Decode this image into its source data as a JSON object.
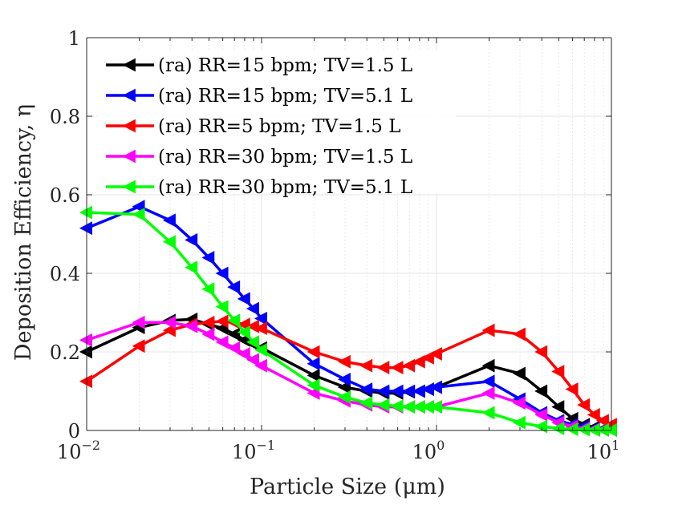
{
  "chart_data": {
    "type": "line",
    "xlabel": "Particle Size (μm)",
    "ylabel": "Deposition Efficiency, η",
    "xscale": "log",
    "xlim": [
      0.01,
      10
    ],
    "ylim": [
      0,
      1
    ],
    "xticks": [
      {
        "value": 0.01,
        "base": "10",
        "exp": "−2"
      },
      {
        "value": 0.1,
        "base": "10",
        "exp": "−1"
      },
      {
        "value": 1,
        "base": "10",
        "exp": "0"
      },
      {
        "value": 10,
        "base": "10",
        "exp": "1"
      }
    ],
    "yticks": [
      {
        "value": 0,
        "label": "0"
      },
      {
        "value": 0.2,
        "label": "0.2"
      },
      {
        "value": 0.4,
        "label": "0.4"
      },
      {
        "value": 0.6,
        "label": "0.6"
      },
      {
        "value": 0.8,
        "label": "0.8"
      },
      {
        "value": 1,
        "label": "1"
      }
    ],
    "grid": true,
    "minor_grid": true,
    "marker": "left-triangle",
    "legend_position": "top-left",
    "series": [
      {
        "name": "(ra) RR=15 bpm; TV=1.5 L",
        "color": "#000000",
        "x": [
          0.01,
          0.02,
          0.03,
          0.04,
          0.05,
          0.06,
          0.07,
          0.08,
          0.09,
          0.1,
          0.2,
          0.3,
          0.4,
          0.5,
          0.6,
          0.7,
          0.8,
          0.9,
          1,
          2,
          3,
          4,
          5,
          6,
          7,
          8,
          9,
          10
        ],
        "y": [
          0.2,
          0.262,
          0.28,
          0.283,
          0.27,
          0.26,
          0.245,
          0.23,
          0.22,
          0.21,
          0.14,
          0.11,
          0.1,
          0.095,
          0.095,
          0.098,
          0.1,
          0.105,
          0.11,
          0.165,
          0.145,
          0.1,
          0.06,
          0.03,
          0.015,
          0.008,
          0.004,
          0.002
        ]
      },
      {
        "name": "(ra) RR=15 bpm; TV=5.1 L",
        "color": "#0000FF",
        "x": [
          0.01,
          0.02,
          0.03,
          0.04,
          0.05,
          0.06,
          0.07,
          0.08,
          0.09,
          0.1,
          0.2,
          0.3,
          0.4,
          0.5,
          0.6,
          0.7,
          0.8,
          0.9,
          1,
          2,
          3,
          4,
          5,
          6,
          7,
          8,
          9,
          10
        ],
        "y": [
          0.515,
          0.57,
          0.535,
          0.485,
          0.44,
          0.4,
          0.365,
          0.335,
          0.31,
          0.285,
          0.17,
          0.13,
          0.105,
          0.1,
          0.1,
          0.1,
          0.1,
          0.105,
          0.11,
          0.125,
          0.08,
          0.045,
          0.025,
          0.015,
          0.01,
          0.005,
          0.003,
          0.001
        ]
      },
      {
        "name": "(ra) RR=5 bpm; TV=1.5 L",
        "color": "#FF0000",
        "x": [
          0.01,
          0.02,
          0.03,
          0.04,
          0.05,
          0.06,
          0.07,
          0.08,
          0.09,
          0.1,
          0.2,
          0.3,
          0.4,
          0.5,
          0.6,
          0.7,
          0.8,
          0.9,
          1,
          2,
          3,
          4,
          5,
          6,
          7,
          8,
          9,
          10
        ],
        "y": [
          0.125,
          0.215,
          0.255,
          0.27,
          0.275,
          0.278,
          0.275,
          0.27,
          0.265,
          0.26,
          0.2,
          0.175,
          0.165,
          0.16,
          0.16,
          0.165,
          0.175,
          0.185,
          0.195,
          0.255,
          0.245,
          0.2,
          0.15,
          0.105,
          0.065,
          0.04,
          0.025,
          0.015
        ]
      },
      {
        "name": "(ra) RR=30 bpm; TV=1.5 L",
        "color": "#FF00FF",
        "x": [
          0.01,
          0.02,
          0.03,
          0.04,
          0.05,
          0.06,
          0.07,
          0.08,
          0.09,
          0.1,
          0.2,
          0.3,
          0.4,
          0.5,
          0.6,
          0.7,
          0.8,
          0.9,
          1,
          2,
          3,
          4,
          5,
          6,
          7,
          8,
          9,
          10
        ],
        "y": [
          0.23,
          0.275,
          0.275,
          0.265,
          0.245,
          0.225,
          0.21,
          0.195,
          0.18,
          0.165,
          0.095,
          0.075,
          0.065,
          0.06,
          0.06,
          0.06,
          0.06,
          0.06,
          0.06,
          0.095,
          0.07,
          0.04,
          0.02,
          0.01,
          0.005,
          0.003,
          0.002,
          0.001
        ]
      },
      {
        "name": "(ra) RR=30 bpm; TV=5.1 L",
        "color": "#00FF00",
        "x": [
          0.01,
          0.02,
          0.03,
          0.04,
          0.05,
          0.06,
          0.07,
          0.08,
          0.09,
          0.1,
          0.2,
          0.3,
          0.4,
          0.5,
          0.6,
          0.7,
          0.8,
          0.9,
          1,
          2,
          3,
          4,
          5,
          6,
          7,
          8,
          9,
          10
        ],
        "y": [
          0.555,
          0.55,
          0.48,
          0.415,
          0.36,
          0.315,
          0.28,
          0.25,
          0.225,
          0.205,
          0.115,
          0.085,
          0.07,
          0.065,
          0.062,
          0.06,
          0.06,
          0.06,
          0.06,
          0.045,
          0.02,
          0.01,
          0.005,
          0.003,
          0.002,
          0.001,
          0.001,
          0.001
        ]
      }
    ]
  }
}
